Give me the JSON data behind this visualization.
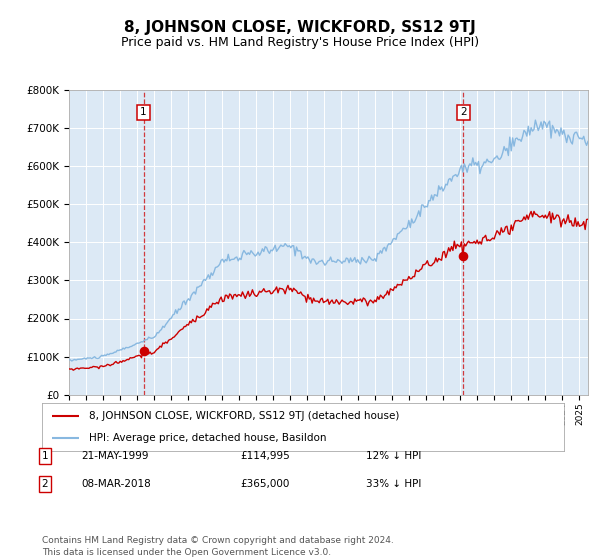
{
  "title": "8, JOHNSON CLOSE, WICKFORD, SS12 9TJ",
  "subtitle": "Price paid vs. HM Land Registry's House Price Index (HPI)",
  "title_fontsize": 11,
  "subtitle_fontsize": 9,
  "background_color": "#dce9f5",
  "plot_bg_color": "#dce9f5",
  "grid_color": "#ffffff",
  "hpi_color": "#88b8e0",
  "price_color": "#cc0000",
  "marker_color": "#cc0000",
  "ylim": [
    0,
    800000
  ],
  "yticks": [
    0,
    100000,
    200000,
    300000,
    400000,
    500000,
    600000,
    700000,
    800000
  ],
  "ytick_labels": [
    "£0",
    "£100K",
    "£200K",
    "£300K",
    "£400K",
    "£500K",
    "£600K",
    "£700K",
    "£800K"
  ],
  "sale1_x": 1999.38,
  "sale1_price": 114995,
  "sale2_x": 2018.18,
  "sale2_price": 365000,
  "legend_property": "8, JOHNSON CLOSE, WICKFORD, SS12 9TJ (detached house)",
  "legend_hpi": "HPI: Average price, detached house, Basildon",
  "footnote": "Contains HM Land Registry data © Crown copyright and database right 2024.\nThis data is licensed under the Open Government Licence v3.0.",
  "footnote_fontsize": 6.5,
  "sale_info": [
    {
      "num": "1",
      "date": "21-MAY-1999",
      "price": "£114,995",
      "note": "12% ↓ HPI"
    },
    {
      "num": "2",
      "date": "08-MAR-2018",
      "price": "£365,000",
      "note": "33% ↓ HPI"
    }
  ]
}
